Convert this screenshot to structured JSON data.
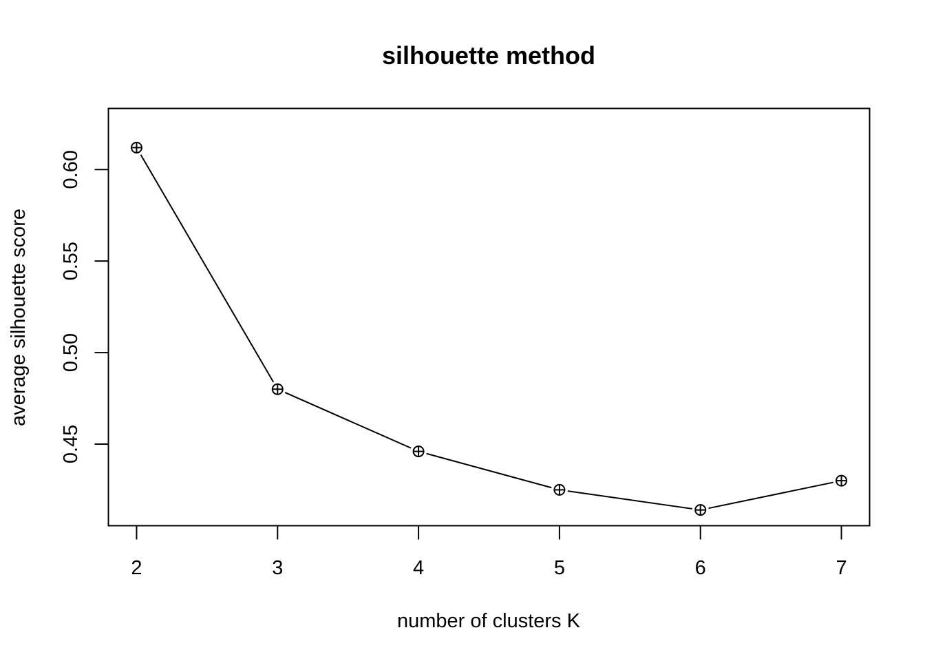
{
  "chart_data": {
    "type": "line",
    "title": "silhouette method",
    "xlabel": "number of clusters K",
    "ylabel": "average silhouette score",
    "x": [
      2,
      3,
      4,
      5,
      6,
      7
    ],
    "series": [
      {
        "values": [
          0.612,
          0.48,
          0.446,
          0.425,
          0.414,
          0.43
        ]
      }
    ],
    "xticks": [
      2,
      3,
      4,
      5,
      6,
      7
    ],
    "xtick_labels": [
      "2",
      "3",
      "4",
      "5",
      "6",
      "7"
    ],
    "yticks": [
      0.45,
      0.5,
      0.55,
      0.6
    ],
    "ytick_labels": [
      "0.45",
      "0.50",
      "0.55",
      "0.60"
    ],
    "xlim": [
      1.8,
      7.2
    ],
    "ylim": [
      0.4054,
      0.6334
    ],
    "marker": "circle-plus",
    "line_color": "#000000",
    "grid": false,
    "legend": "none"
  }
}
